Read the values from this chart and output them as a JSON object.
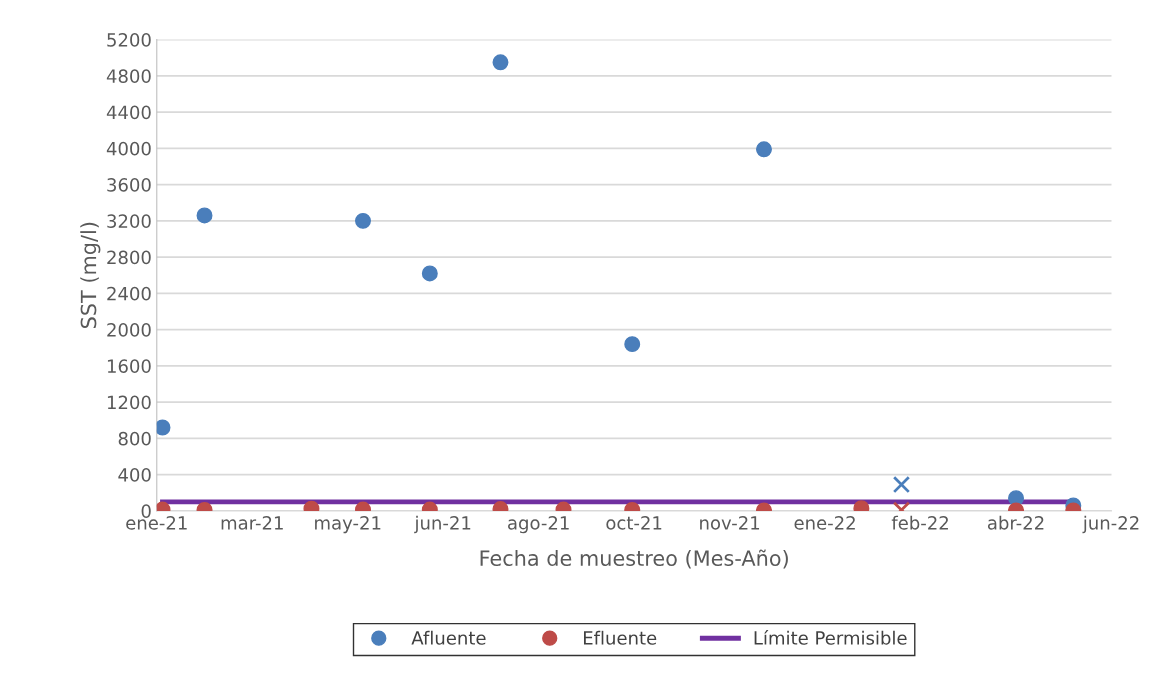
{
  "chart_data": {
    "type": "scatter",
    "xlabel": "Fecha de muestreo (Mes-Año)",
    "ylabel": "SST (mg/l)",
    "series": [
      {
        "name": "Afluente",
        "color": "#4a7ebb",
        "marker": "circle",
        "x": [
          "2021-01-27",
          "2021-02-18",
          "2021-05-12",
          "2021-06-16",
          "2021-07-23",
          "2021-09-30",
          "2021-12-08",
          "2022-04-19",
          "2022-05-19"
        ],
        "values": [
          920,
          3260,
          3200,
          2620,
          4950,
          1840,
          3990,
          140,
          60
        ]
      },
      {
        "name": "Efluente",
        "color": "#be4b48",
        "marker": "circle",
        "x": [
          "2021-01-27",
          "2021-02-18",
          "2021-04-15",
          "2021-05-12",
          "2021-06-16",
          "2021-07-23",
          "2021-08-25",
          "2021-09-30",
          "2021-12-08",
          "2022-01-28",
          "2022-04-19",
          "2022-05-19"
        ],
        "values": [
          15,
          10,
          25,
          15,
          15,
          20,
          15,
          10,
          5,
          30,
          5,
          5
        ]
      },
      {
        "color": "#4a7ebb",
        "marker": "cross",
        "x": [
          "2022-02-18"
        ],
        "values": [
          290
        ]
      },
      {
        "color": "#be4b48",
        "marker": "cross",
        "x": [
          "2022-02-18"
        ],
        "values": [
          10
        ]
      },
      {
        "name": "Límite Permisible",
        "type": "line",
        "color": "#7030a0",
        "marker": "none",
        "line_style": "solid",
        "x": [
          "2021-01-27",
          "2022-05-19"
        ],
        "values": [
          100,
          100
        ]
      }
    ],
    "xlim": [
      "2021-01-24",
      "2022-06-08"
    ],
    "xticks": [
      {
        "value": "2021-01-24",
        "label": "ene-21"
      },
      {
        "value": "2021-03-15",
        "label": "mar-21"
      },
      {
        "value": "2021-05-04",
        "label": "may-21"
      },
      {
        "value": "2021-06-23",
        "label": "jun-21"
      },
      {
        "value": "2021-08-12",
        "label": "ago-21"
      },
      {
        "value": "2021-10-01",
        "label": "oct-21"
      },
      {
        "value": "2021-11-20",
        "label": "nov-21"
      },
      {
        "value": "2022-01-09",
        "label": "ene-22"
      },
      {
        "value": "2022-02-28",
        "label": "feb-22"
      },
      {
        "value": "2022-04-19",
        "label": "abr-22"
      },
      {
        "value": "2022-06-08",
        "label": "jun-22"
      }
    ],
    "ylim": [
      0,
      5200
    ],
    "yticks": [
      0,
      400,
      800,
      1200,
      1600,
      2000,
      2400,
      2800,
      3200,
      3600,
      4000,
      4400,
      4800,
      5200
    ],
    "grid": "y",
    "legend": "bottom"
  }
}
